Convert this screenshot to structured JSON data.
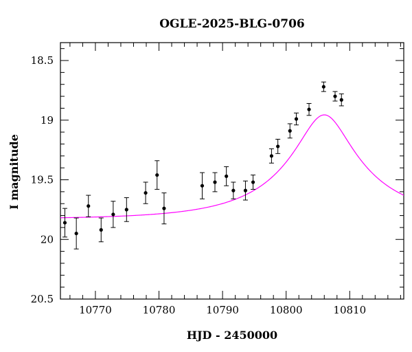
{
  "chart_data": {
    "type": "scatter",
    "title": "OGLE-2025-BLG-0706",
    "xlabel": "HJD - 2450000",
    "ylabel": "I magnitude",
    "xlim": [
      10764.5,
      10818.5
    ],
    "ylim": [
      20.5,
      18.35
    ],
    "y_inverted": true,
    "x_ticks": [
      10770,
      10780,
      10790,
      10800,
      10810
    ],
    "x_tick_labels": [
      "10770",
      "10780",
      "10790",
      "10800",
      "10810"
    ],
    "y_ticks": [
      18.5,
      19,
      19.5,
      20,
      20.5
    ],
    "y_tick_labels": [
      "18.5",
      "19",
      "19.5",
      "20",
      "20.5"
    ],
    "grid": false,
    "series": [
      {
        "kind": "points",
        "color": "#000000",
        "x": [
          10765.2,
          10767.0,
          10768.9,
          10770.9,
          10772.8,
          10774.9,
          10777.9,
          10779.7,
          10780.8,
          10786.8,
          10788.8,
          10790.6,
          10791.7,
          10793.6,
          10794.8,
          10797.7,
          10798.7,
          10800.6,
          10801.6,
          10803.6,
          10805.9,
          10807.7,
          10808.7
        ],
        "y": [
          19.86,
          19.95,
          19.72,
          19.92,
          19.79,
          19.75,
          19.61,
          19.46,
          19.74,
          19.55,
          19.52,
          19.47,
          19.59,
          19.59,
          19.52,
          19.3,
          19.22,
          19.09,
          18.99,
          18.91,
          18.72,
          18.8,
          18.83
        ],
        "err": [
          0.12,
          0.13,
          0.09,
          0.1,
          0.11,
          0.1,
          0.09,
          0.12,
          0.13,
          0.11,
          0.08,
          0.08,
          0.07,
          0.08,
          0.06,
          0.06,
          0.06,
          0.06,
          0.05,
          0.05,
          0.04,
          0.04,
          0.05
        ]
      },
      {
        "kind": "model",
        "color": "#ff00ff",
        "t0": 10806.0,
        "u0": 0.25,
        "tE": 16.0,
        "base_mag": 19.83,
        "blend_fraction": 0.4
      }
    ]
  }
}
